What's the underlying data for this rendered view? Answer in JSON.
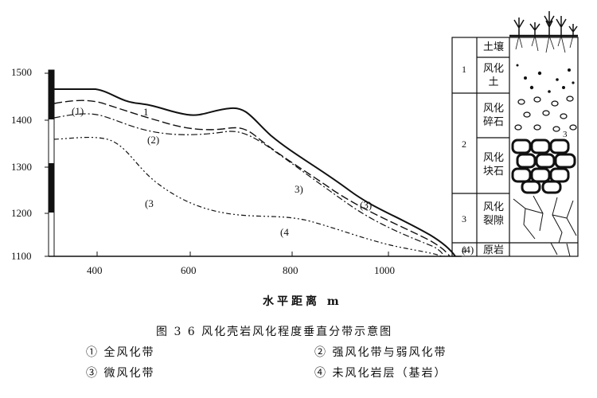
{
  "y_ticks": [
    "1500",
    "1400",
    "1300",
    "1200",
    "1100"
  ],
  "x_ticks": [
    "400",
    "600",
    "800",
    "1000"
  ],
  "x_axis_label": "水平距离  m",
  "figure_caption": "图 3 6  风化壳岩风化程度垂直分带示意图",
  "zone_labels": {
    "z1_upper": "1",
    "z1_lower": "(1)",
    "z2": "(2)",
    "z3_a": "3)",
    "z3_b": "(3)",
    "z3_left": "(3",
    "z4_a": "(4",
    "z4_b": "(4)"
  },
  "legend": [
    {
      "num": "①",
      "text": "全风化带"
    },
    {
      "num": "②",
      "text": "强风化带与弱风化带"
    },
    {
      "num": "③",
      "text": "微风化带"
    },
    {
      "num": "④",
      "text": "未风化岩层（基岩）"
    }
  ],
  "column": {
    "group_numbers": [
      "1",
      "2",
      "3",
      "4"
    ],
    "layer_labels": [
      "土壤",
      "风化土",
      "风化碎石",
      "风化块石",
      "风化裂隙",
      "原岩"
    ]
  }
}
